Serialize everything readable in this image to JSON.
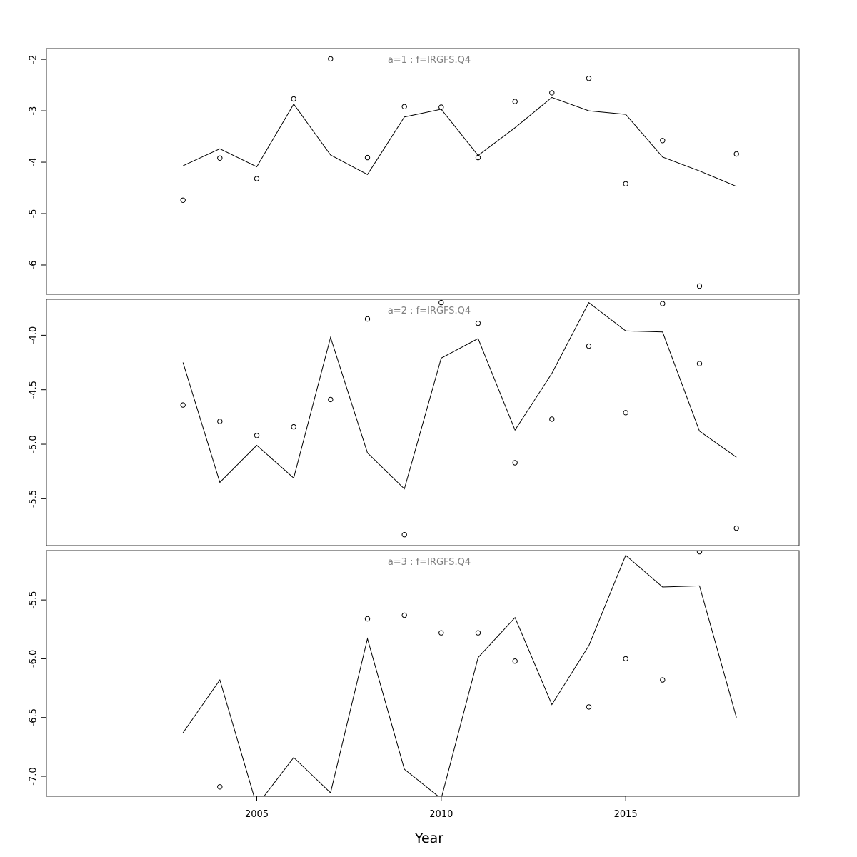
{
  "chart_data": {
    "type": "line",
    "xlabel": "Year",
    "x": [
      2003,
      2004,
      2005,
      2006,
      2007,
      2008,
      2009,
      2010,
      2011,
      2012,
      2013,
      2014,
      2015,
      2016,
      2017,
      2018
    ],
    "xticks": [
      2005,
      2010,
      2015
    ],
    "xlim": [
      1999.3,
      2019.7
    ],
    "panels": [
      {
        "title": "a=1  :  f=IRGFS.Q4",
        "ylim": [
          -6.57,
          -1.79
        ],
        "yticks": [
          -2,
          -3,
          -4,
          -5,
          -6
        ],
        "ytick_labels": [
          "-2",
          "-3",
          "-4",
          "-5",
          "-6"
        ],
        "line": [
          -4.07,
          -3.74,
          -4.09,
          -2.87,
          -3.86,
          -4.24,
          -3.12,
          -2.97,
          -3.87,
          -3.33,
          -2.74,
          -3.0,
          -3.07,
          -3.9,
          -4.17,
          -4.47
        ],
        "points": [
          -4.74,
          -3.92,
          -4.32,
          -2.77,
          -1.99,
          -3.91,
          -2.92,
          -2.93,
          -3.91,
          -2.82,
          -2.65,
          -2.37,
          -4.42,
          -3.58,
          -6.41,
          -3.84
        ]
      },
      {
        "title": "a=2  :  f=IRGFS.Q4",
        "ylim": [
          -5.93,
          -3.67
        ],
        "yticks": [
          -4.0,
          -4.5,
          -5.0,
          -5.5
        ],
        "ytick_labels": [
          "-4.0",
          "-4.5",
          "-5.0",
          "-5.5"
        ],
        "line": [
          -4.25,
          -5.35,
          -5.01,
          -5.31,
          -4.02,
          -5.08,
          -5.41,
          -4.21,
          -4.03,
          -4.87,
          -4.35,
          -3.7,
          -3.96,
          -3.97,
          -4.88,
          -5.12
        ],
        "points": [
          -4.64,
          -4.79,
          -4.92,
          -4.84,
          -4.59,
          -3.85,
          -5.83,
          -3.7,
          -3.89,
          -5.17,
          -4.77,
          -4.1,
          -4.71,
          -3.71,
          -4.26,
          -5.77
        ]
      },
      {
        "title": "a=3  :  f=IRGFS.Q4",
        "ylim": [
          -7.17,
          -5.08
        ],
        "yticks": [
          -5.5,
          -6.0,
          -6.5,
          -7.0
        ],
        "ytick_labels": [
          "-5.5",
          "-6.0",
          "-6.5",
          "-7.0"
        ],
        "line": [
          -6.63,
          -6.18,
          -7.25,
          -6.84,
          -7.14,
          -5.83,
          -6.94,
          -7.19,
          -5.99,
          -5.65,
          -6.39,
          -5.89,
          -5.12,
          -5.39,
          -5.38,
          -6.5
        ],
        "points": [
          null,
          -7.09,
          null,
          null,
          null,
          -5.66,
          -5.63,
          -5.78,
          -5.78,
          -6.02,
          null,
          -6.41,
          -6.0,
          -6.18,
          -5.09,
          null
        ]
      }
    ]
  }
}
